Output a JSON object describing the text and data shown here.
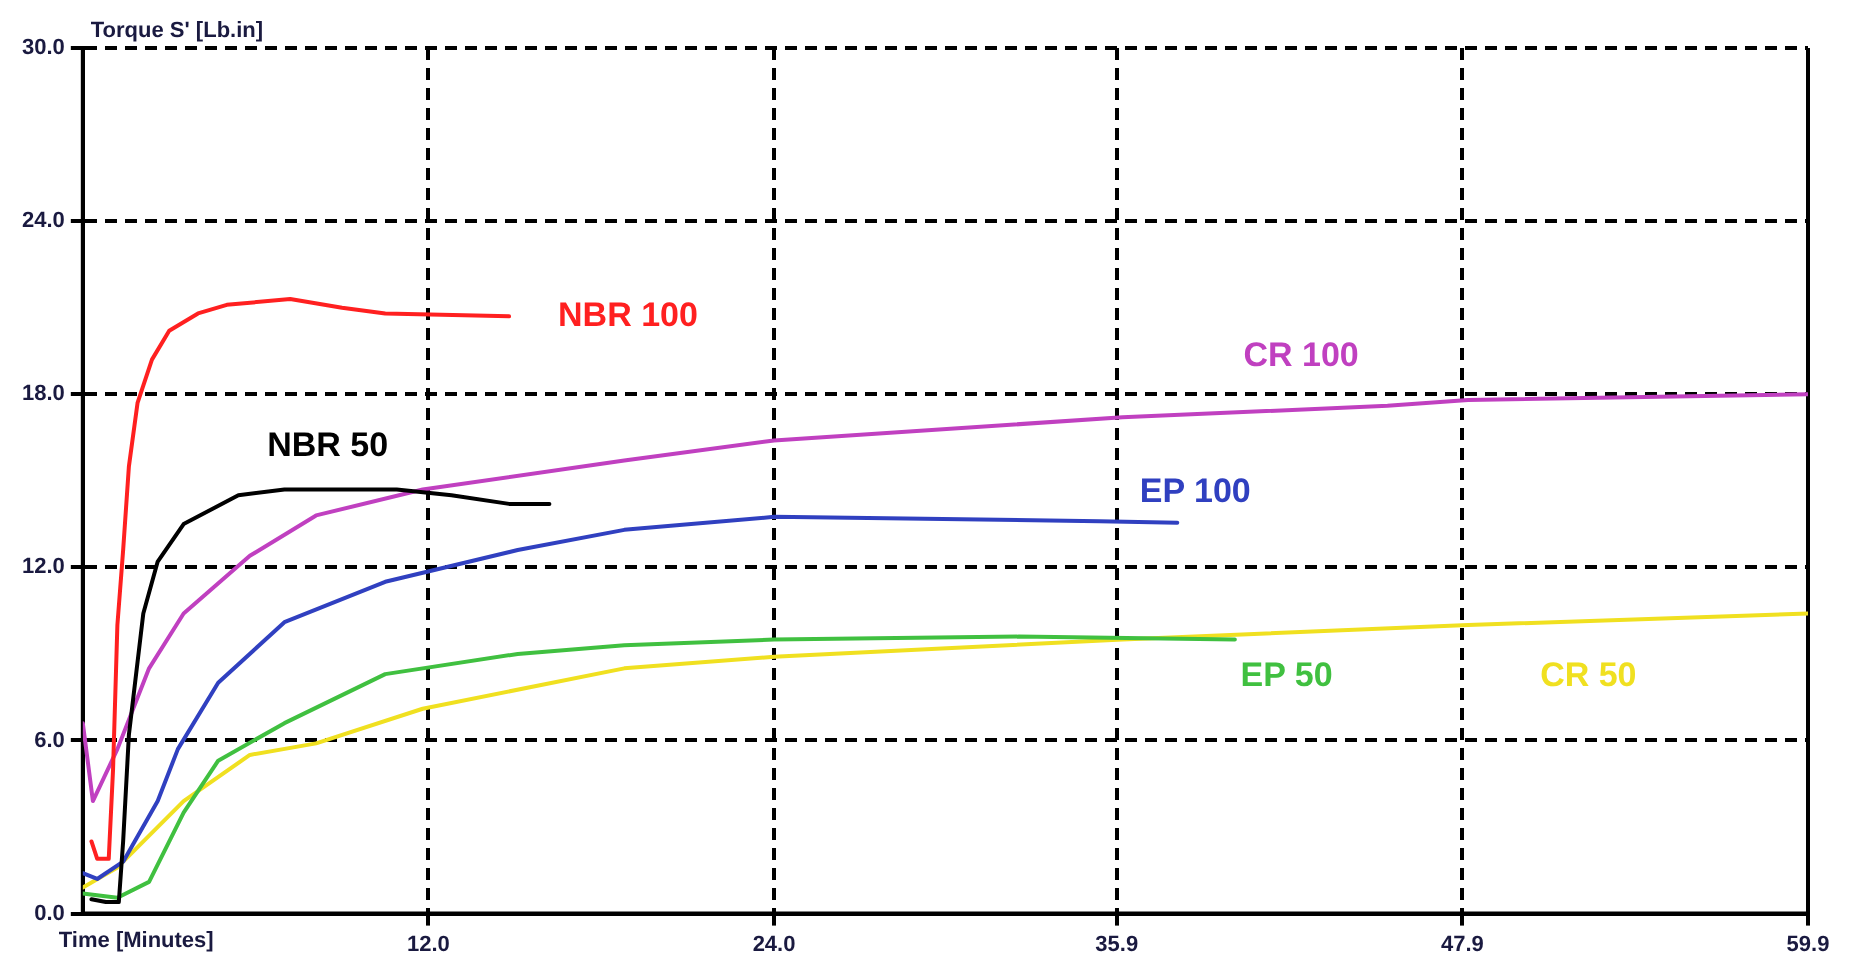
{
  "chart_data": {
    "type": "line",
    "ylabel": "Torque S' [Lb.in]",
    "xlabel": "Time [Minutes]",
    "xlim": [
      0,
      59.9
    ],
    "xticks": [
      {
        "value": 12,
        "label": "12.0"
      },
      {
        "value": 24,
        "label": "24.0"
      },
      {
        "value": 35.9,
        "label": "35.9"
      },
      {
        "value": 47.9,
        "label": "47.9"
      },
      {
        "value": 59.9,
        "label": "59.9"
      }
    ],
    "ylim": [
      0,
      30
    ],
    "yticks": [
      {
        "value": 0,
        "label": "0.0"
      },
      {
        "value": 6,
        "label": "6.0"
      },
      {
        "value": 12,
        "label": "12.0"
      },
      {
        "value": 18,
        "label": "18.0"
      },
      {
        "value": 24,
        "label": "24.0"
      },
      {
        "value": 30,
        "label": "30.0"
      }
    ],
    "grid": true,
    "line_style": "solid",
    "marker": "none",
    "legend": false,
    "series": [
      {
        "name": "NBR 100",
        "color": "#ff2020",
        "x": [
          0.3,
          0.5,
          0.9,
          1.05,
          1.2,
          1.4,
          1.6,
          1.9,
          2.4,
          3.0,
          4.0,
          5.0,
          7.2,
          9.0,
          10.5,
          14.8
        ],
        "values": [
          2.5,
          1.9,
          1.9,
          5,
          10,
          12.6,
          15.5,
          17.7,
          19.2,
          20.2,
          20.8,
          21.1,
          21.3,
          21.0,
          20.8,
          20.7
        ]
      },
      {
        "name": "NBR 50",
        "color": "#000000",
        "x": [
          0.3,
          0.8,
          1.25,
          1.4,
          1.6,
          2.1,
          2.6,
          3.5,
          5.4,
          7.0,
          10.9,
          12.8,
          14.8,
          16.2
        ],
        "values": [
          0.5,
          0.4,
          0.4,
          2.5,
          6.2,
          10.4,
          12.2,
          13.5,
          14.5,
          14.7,
          14.7,
          14.5,
          14.2,
          14.2
        ]
      },
      {
        "name": "CR 100",
        "color": "#c040c0",
        "x": [
          0,
          0.35,
          1.2,
          2.3,
          3.5,
          5.8,
          8.1,
          11.8,
          18.8,
          24,
          36.1,
          45.3,
          48.1,
          59.9
        ],
        "values": [
          6.6,
          3.9,
          5.7,
          8.5,
          10.4,
          12.4,
          13.8,
          14.7,
          15.7,
          16.4,
          17.2,
          17.6,
          17.8,
          18.0
        ]
      },
      {
        "name": "EP 100",
        "color": "#3040c0",
        "x": [
          0,
          0.5,
          1.4,
          2.6,
          3.3,
          4.7,
          7.0,
          10.5,
          15.1,
          18.8,
          24,
          35.3,
          38.0
        ],
        "values": [
          1.4,
          1.2,
          1.8,
          3.9,
          5.7,
          8.0,
          10.1,
          11.5,
          12.6,
          13.3,
          13.75,
          13.6,
          13.55
        ]
      },
      {
        "name": "EP 50",
        "color": "#40c040",
        "x": [
          0,
          1.2,
          2.3,
          3.5,
          4.7,
          7.0,
          10.5,
          15.1,
          18.8,
          24,
          32.5,
          40.0
        ],
        "values": [
          0.7,
          0.55,
          1.1,
          3.5,
          5.3,
          6.6,
          8.3,
          9.0,
          9.3,
          9.5,
          9.6,
          9.5
        ]
      },
      {
        "name": "CR 50",
        "color": "#f0e020",
        "x": [
          0,
          1.2,
          3.5,
          5.8,
          8.1,
          11.8,
          18.8,
          24,
          36.1,
          48.1,
          59.9
        ],
        "values": [
          0.9,
          1.6,
          3.9,
          5.5,
          5.9,
          7.1,
          8.5,
          8.9,
          9.5,
          10.0,
          10.4
        ]
      }
    ]
  }
}
